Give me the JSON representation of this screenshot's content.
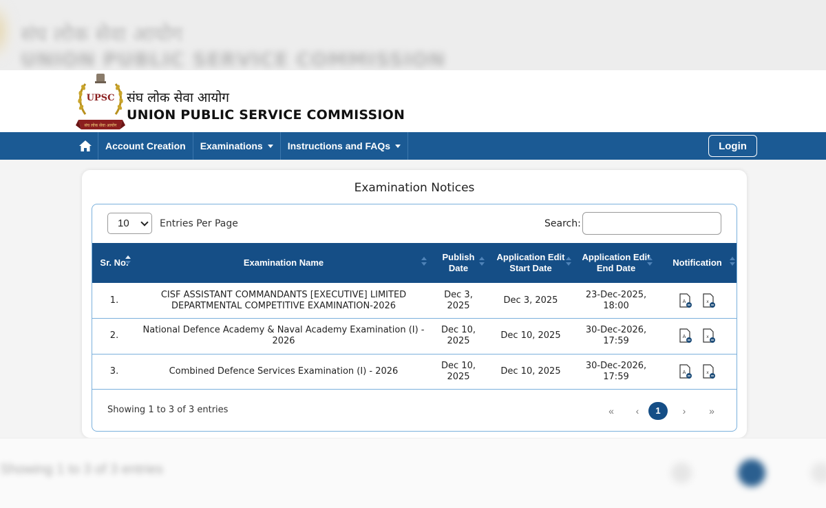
{
  "background": {
    "hindi": "संघ लोक सेवा आयोग",
    "english": "UNION PUBLIC SERVICE COMMISSION",
    "showing": "Showing 1 to 3 of 3 entries"
  },
  "header": {
    "emblem_text": "UPSC",
    "emblem_ribbon": "संघ लोक सेवा आयोग",
    "title_hindi": "संघ लोक सेवा आयोग",
    "title_english": "UNION PUBLIC SERVICE COMMISSION"
  },
  "navbar": {
    "home_icon": "home-icon",
    "items": [
      {
        "label": "Account Creation",
        "dropdown": false
      },
      {
        "label": "Examinations",
        "dropdown": true
      },
      {
        "label": "Instructions and FAQs",
        "dropdown": true
      }
    ],
    "login_label": "Login"
  },
  "card": {
    "title": "Examination Notices",
    "entries_value": "10",
    "entries_label": "Entries Per Page",
    "search_label": "Search:",
    "search_value": ""
  },
  "table": {
    "headers": {
      "sr": "Sr. No.",
      "name": "Examination Name",
      "publish_1": "Publish",
      "publish_2": "Date",
      "edit_start_1": "Application Edit",
      "edit_start_2": "Start Date",
      "edit_end_1": "Application Edit",
      "edit_end_2": "End Date",
      "notification": "Notification"
    },
    "rows": [
      {
        "sr": "1.",
        "name_1": "CISF ASSISTANT COMMANDANTS [EXECUTIVE] LIMITED",
        "name_2": "DEPARTMENTAL COMPETITIVE EXAMINATION-2026",
        "publish_1": "Dec 3,",
        "publish_2": "2025",
        "start": "Dec 3, 2025",
        "end_1": "23-Dec-2025,",
        "end_2": "18:00"
      },
      {
        "sr": "2.",
        "name_1": "National Defence Academy & Naval Academy Examination (I) - 2026",
        "name_2": "",
        "publish_1": "Dec 10,",
        "publish_2": "2025",
        "start": "Dec 10, 2025",
        "end_1": "30-Dec-2026,",
        "end_2": "17:59"
      },
      {
        "sr": "3.",
        "name_1": "Combined Defence Services Examination (I) - 2026",
        "name_2": "",
        "publish_1": "Dec 10,",
        "publish_2": "2025",
        "start": "Dec 10, 2025",
        "end_1": "30-Dec-2026,",
        "end_2": "17:59"
      }
    ]
  },
  "footer": {
    "info": "Showing 1 to 3 of 3 entries",
    "first": "«",
    "prev": "‹",
    "current": "1",
    "next": "›",
    "last": "»"
  },
  "colors": {
    "navbar": "#1b5a94",
    "table_header": "#154e86",
    "border": "#7ab0dc"
  }
}
